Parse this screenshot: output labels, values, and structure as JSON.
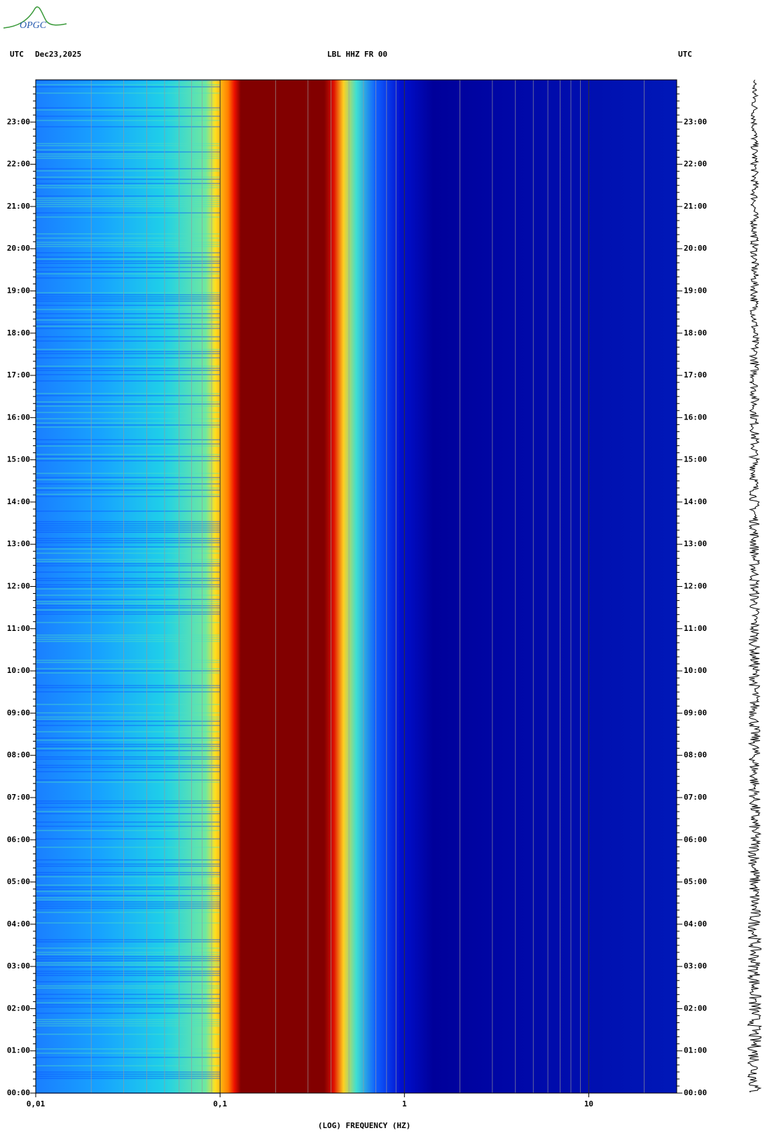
{
  "logo": "OPGC",
  "chart_data": {
    "type": "spectrogram",
    "title": "LBL HHZ FR 00",
    "timezone_left": "UTC",
    "date": "Dec23,2025",
    "timezone_right": "UTC",
    "xlabel": "(LOG) FREQUENCY (HZ)",
    "xscale": "log",
    "xlim": [
      0.01,
      30
    ],
    "xticks": [
      {
        "value": 0.01,
        "label": "0,01"
      },
      {
        "value": 0.1,
        "label": "0,1"
      },
      1,
      10
    ],
    "ylim": [
      0,
      24
    ],
    "yticks": [
      {
        "value": 0,
        "label": "00:00"
      },
      {
        "value": 1,
        "label": "01:00"
      },
      {
        "value": 2,
        "label": "02:00"
      },
      {
        "value": 3,
        "label": "03:00"
      },
      {
        "value": 4,
        "label": "04:00"
      },
      {
        "value": 5,
        "label": "05:00"
      },
      {
        "value": 6,
        "label": "06:00"
      },
      {
        "value": 7,
        "label": "07:00"
      },
      {
        "value": 8,
        "label": "08:00"
      },
      {
        "value": 9,
        "label": "09:00"
      },
      {
        "value": 10,
        "label": "10:00"
      },
      {
        "value": 11,
        "label": "11:00"
      },
      {
        "value": 12,
        "label": "12:00"
      },
      {
        "value": 13,
        "label": "13:00"
      },
      {
        "value": 14,
        "label": "14:00"
      },
      {
        "value": 15,
        "label": "15:00"
      },
      {
        "value": 16,
        "label": "16:00"
      },
      {
        "value": 17,
        "label": "17:00"
      },
      {
        "value": 18,
        "label": "18:00"
      },
      {
        "value": 19,
        "label": "19:00"
      },
      {
        "value": 20,
        "label": "20:00"
      },
      {
        "value": 21,
        "label": "21:00"
      },
      {
        "value": 22,
        "label": "22:00"
      },
      {
        "value": 23,
        "label": "23:00"
      }
    ],
    "grid": true
  }
}
